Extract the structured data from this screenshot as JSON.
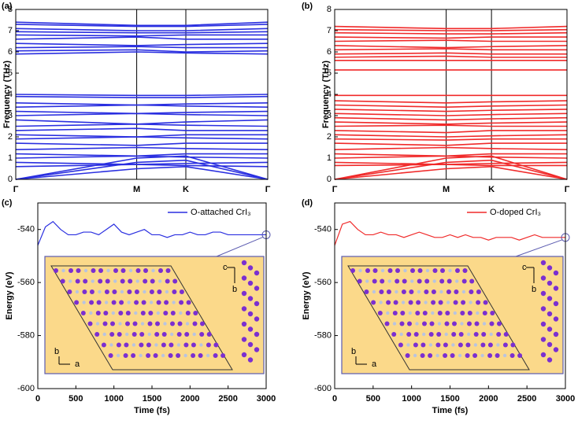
{
  "chart_data": [
    {
      "type": "band",
      "panel_label": "(a)",
      "ylabel": "Frequency (THz)",
      "color": "#2a2fe0",
      "xlim": [
        0,
        1
      ],
      "xticks": [
        {
          "value": 0,
          "label": "Γ"
        },
        {
          "value": 0.48,
          "label": "M"
        },
        {
          "value": 0.675,
          "label": "K"
        },
        {
          "value": 1,
          "label": "Γ"
        }
      ],
      "ylim": [
        0,
        8
      ],
      "yticks": [
        0,
        1,
        2,
        3,
        4,
        5,
        6,
        7,
        8
      ],
      "x": [
        0,
        0.48,
        0.675,
        1
      ],
      "series": [
        {
          "values": [
            7.4,
            7.25,
            7.25,
            7.4
          ]
        },
        {
          "values": [
            7.3,
            7.2,
            7.2,
            7.3
          ]
        },
        {
          "values": [
            7.1,
            7.0,
            7.0,
            7.1
          ]
        },
        {
          "values": [
            6.95,
            6.9,
            6.9,
            6.95
          ]
        },
        {
          "values": [
            6.8,
            6.75,
            6.8,
            6.8
          ]
        },
        {
          "values": [
            6.6,
            6.7,
            6.6,
            6.6
          ]
        },
        {
          "values": [
            6.4,
            6.3,
            6.35,
            6.4
          ]
        },
        {
          "values": [
            6.2,
            6.25,
            6.2,
            6.2
          ]
        },
        {
          "values": [
            6.05,
            6.1,
            6.0,
            6.05
          ]
        },
        {
          "values": [
            5.9,
            6.0,
            5.95,
            5.9
          ]
        },
        {
          "values": [
            4.0,
            3.95,
            3.95,
            4.0
          ]
        },
        {
          "values": [
            3.9,
            3.85,
            3.85,
            3.9
          ]
        },
        {
          "values": [
            3.6,
            3.5,
            3.55,
            3.6
          ]
        },
        {
          "values": [
            3.4,
            3.5,
            3.45,
            3.4
          ]
        },
        {
          "values": [
            3.2,
            3.1,
            3.15,
            3.2
          ]
        },
        {
          "values": [
            3.0,
            3.1,
            3.05,
            3.0
          ]
        },
        {
          "values": [
            2.8,
            2.6,
            2.7,
            2.8
          ]
        },
        {
          "values": [
            2.5,
            2.6,
            2.55,
            2.5
          ]
        },
        {
          "values": [
            2.3,
            2.4,
            2.3,
            2.3
          ]
        },
        {
          "values": [
            2.1,
            2.0,
            2.1,
            2.1
          ]
        },
        {
          "values": [
            1.9,
            2.0,
            1.95,
            1.9
          ]
        },
        {
          "values": [
            1.7,
            1.6,
            1.7,
            1.7
          ]
        },
        {
          "values": [
            1.4,
            1.5,
            1.45,
            1.4
          ]
        },
        {
          "values": [
            1.2,
            1.1,
            1.2,
            1.2
          ]
        },
        {
          "values": [
            1.0,
            1.1,
            1.05,
            1.0
          ]
        },
        {
          "values": [
            0.8,
            0.7,
            0.75,
            0.8
          ]
        },
        {
          "values": [
            0.6,
            0.7,
            0.65,
            0.6
          ]
        },
        {
          "values": [
            0,
            1.0,
            1.1,
            0
          ]
        },
        {
          "values": [
            0,
            0.8,
            0.9,
            0
          ]
        },
        {
          "values": [
            0,
            0.5,
            0.6,
            0
          ]
        }
      ]
    },
    {
      "type": "band",
      "panel_label": "(b)",
      "ylabel": "Frequency (THz)",
      "color": "#f02a2a",
      "xlim": [
        0,
        1
      ],
      "xticks": [
        {
          "value": 0,
          "label": "Γ"
        },
        {
          "value": 0.48,
          "label": "M"
        },
        {
          "value": 0.675,
          "label": "K"
        },
        {
          "value": 1,
          "label": "Γ"
        }
      ],
      "ylim": [
        0,
        8
      ],
      "yticks": [
        0,
        1,
        2,
        3,
        4,
        5,
        6,
        7,
        8
      ],
      "x": [
        0,
        0.48,
        0.675,
        1
      ],
      "series": [
        {
          "values": [
            7.2,
            7.1,
            7.1,
            7.2
          ]
        },
        {
          "values": [
            7.05,
            7.0,
            7.0,
            7.05
          ]
        },
        {
          "values": [
            6.9,
            6.85,
            6.85,
            6.9
          ]
        },
        {
          "values": [
            6.7,
            6.65,
            6.7,
            6.7
          ]
        },
        {
          "values": [
            6.5,
            6.55,
            6.5,
            6.5
          ]
        },
        {
          "values": [
            6.3,
            6.2,
            6.25,
            6.3
          ]
        },
        {
          "values": [
            6.1,
            6.15,
            6.1,
            6.1
          ]
        },
        {
          "values": [
            5.9,
            5.95,
            5.9,
            5.9
          ]
        },
        {
          "values": [
            5.75,
            5.8,
            5.75,
            5.75
          ]
        },
        {
          "values": [
            5.6,
            5.6,
            5.6,
            5.6
          ]
        },
        {
          "values": [
            5.15,
            5.15,
            5.15,
            5.15
          ]
        },
        {
          "values": [
            3.95,
            3.95,
            3.95,
            3.95
          ]
        },
        {
          "values": [
            3.7,
            3.6,
            3.65,
            3.7
          ]
        },
        {
          "values": [
            3.5,
            3.4,
            3.45,
            3.5
          ]
        },
        {
          "values": [
            3.3,
            3.2,
            3.25,
            3.3
          ]
        },
        {
          "values": [
            3.1,
            3.0,
            3.05,
            3.1
          ]
        },
        {
          "values": [
            2.9,
            2.8,
            2.85,
            2.9
          ]
        },
        {
          "values": [
            2.7,
            2.6,
            2.65,
            2.7
          ]
        },
        {
          "values": [
            2.5,
            2.55,
            2.5,
            2.5
          ]
        },
        {
          "values": [
            2.3,
            2.2,
            2.3,
            2.3
          ]
        },
        {
          "values": [
            2.1,
            2.0,
            2.05,
            2.1
          ]
        },
        {
          "values": [
            1.9,
            1.85,
            1.9,
            1.9
          ]
        },
        {
          "values": [
            1.7,
            1.6,
            1.7,
            1.7
          ]
        },
        {
          "values": [
            1.4,
            1.5,
            1.45,
            1.4
          ]
        },
        {
          "values": [
            1.2,
            1.1,
            1.2,
            1.2
          ]
        },
        {
          "values": [
            1.0,
            1.1,
            1.05,
            1.0
          ]
        },
        {
          "values": [
            0.8,
            0.7,
            0.75,
            0.8
          ]
        },
        {
          "values": [
            0.65,
            0.7,
            0.65,
            0.65
          ]
        },
        {
          "values": [
            0,
            1.0,
            1.1,
            0
          ]
        },
        {
          "values": [
            0,
            0.8,
            0.9,
            0
          ]
        },
        {
          "values": [
            0,
            0.5,
            0.6,
            0
          ]
        }
      ]
    },
    {
      "type": "line",
      "panel_label": "(c)",
      "ylabel": "Energy (eV)",
      "xlabel": "Time (fs)",
      "legend": "top-right",
      "inset_labels": [
        "c",
        "b",
        "b",
        "a"
      ],
      "xlim": [
        0,
        3000
      ],
      "xticks": [
        0,
        500,
        1000,
        1500,
        2000,
        2500,
        3000
      ],
      "ylim": [
        -600,
        -530
      ],
      "yticks": [
        -540,
        -560,
        -580,
        -600
      ],
      "x": [
        0,
        100,
        200,
        300,
        400,
        500,
        600,
        700,
        800,
        900,
        1000,
        1100,
        1200,
        1300,
        1400,
        1500,
        1600,
        1700,
        1800,
        1900,
        2000,
        2100,
        2200,
        2300,
        2400,
        2500,
        2600,
        2700,
        2800,
        2900,
        3000
      ],
      "series": [
        {
          "name": "O-attached CrI₃",
          "color": "#2a2fe0",
          "values": [
            -546,
            -539,
            -537,
            -540,
            -542,
            -542,
            -541,
            -541,
            -542,
            -540,
            -538,
            -541,
            -542,
            -541,
            -540,
            -542,
            -542,
            -543,
            -542,
            -542,
            -541,
            -542,
            -542,
            -541,
            -541,
            -542,
            -542,
            -542,
            -542,
            -542,
            -542
          ]
        }
      ]
    },
    {
      "type": "line",
      "panel_label": "(d)",
      "ylabel": "Energy (eV)",
      "xlabel": "Time (fs)",
      "legend": "top-right",
      "inset_labels": [
        "c",
        "b",
        "b",
        "a"
      ],
      "xlim": [
        0,
        3000
      ],
      "xticks": [
        0,
        500,
        1000,
        1500,
        2000,
        2500,
        3000
      ],
      "ylim": [
        -600,
        -530
      ],
      "yticks": [
        -540,
        -560,
        -580,
        -600
      ],
      "x": [
        0,
        100,
        200,
        300,
        400,
        500,
        600,
        700,
        800,
        900,
        1000,
        1100,
        1200,
        1300,
        1400,
        1500,
        1600,
        1700,
        1800,
        1900,
        2000,
        2100,
        2200,
        2300,
        2400,
        2500,
        2600,
        2700,
        2800,
        2900,
        3000
      ],
      "series": [
        {
          "name": "O-doped CrI₃",
          "color": "#f02a2a",
          "values": [
            -546,
            -538,
            -537,
            -540,
            -542,
            -542,
            -541,
            -542,
            -542,
            -543,
            -542,
            -541,
            -542,
            -543,
            -543,
            -542,
            -543,
            -542,
            -543,
            -543,
            -544,
            -543,
            -543,
            -543,
            -544,
            -543,
            -542,
            -543,
            -543,
            -543,
            -543
          ]
        }
      ]
    }
  ]
}
